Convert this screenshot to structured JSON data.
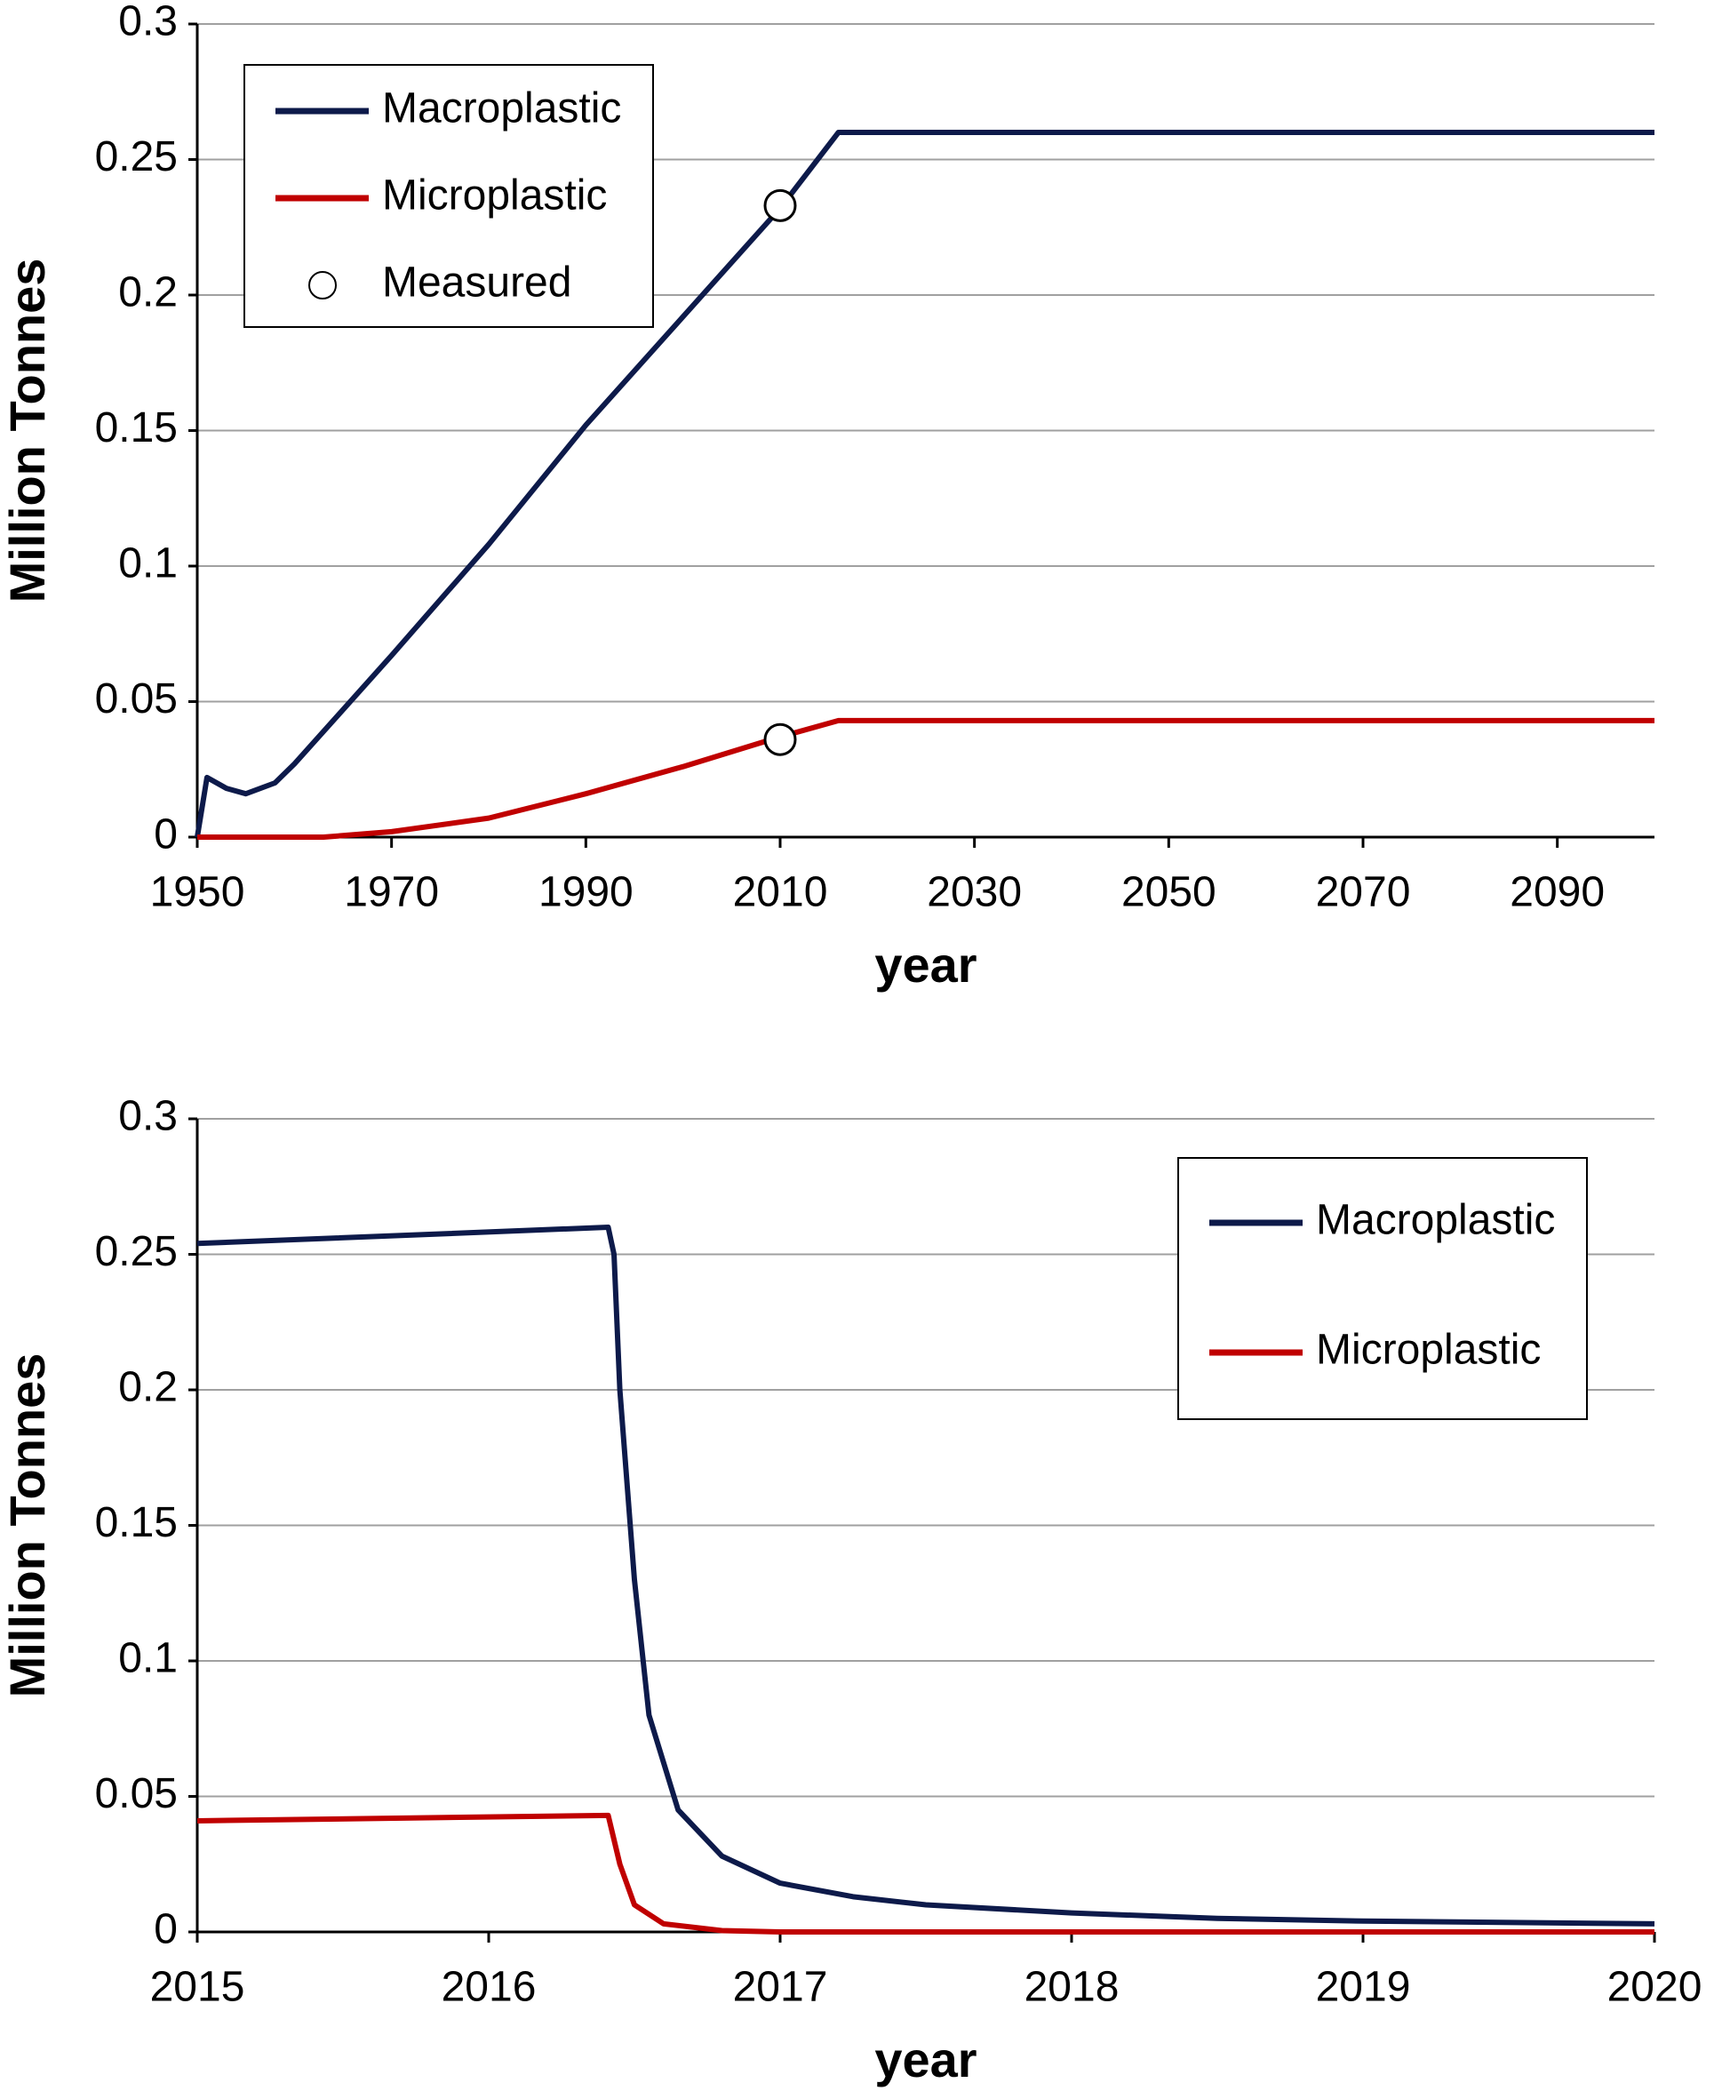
{
  "chart_data": [
    {
      "type": "line",
      "x_label": "year",
      "y_label": "Million Tonnes",
      "xlim": [
        1950,
        2100
      ],
      "xticks": [
        1950,
        1970,
        1990,
        2010,
        2030,
        2050,
        2070,
        2090
      ],
      "ylim": [
        0,
        0.3
      ],
      "yticks": [
        0,
        0.05,
        0.1,
        0.15,
        0.2,
        0.25,
        0.3
      ],
      "grid": true,
      "legend": "upper left",
      "series": [
        {
          "name": "Macroplastic",
          "color": "#0d1a4a",
          "x": [
            1950,
            1951,
            1953,
            1955,
            1958,
            1960,
            1970,
            1980,
            1990,
            2000,
            2010,
            2016,
            2100
          ],
          "values": [
            0,
            0.022,
            0.018,
            0.016,
            0.02,
            0.027,
            0.067,
            0.108,
            0.152,
            0.192,
            0.232,
            0.26,
            0.26
          ]
        },
        {
          "name": "Microplastic",
          "color": "#c00000",
          "x": [
            1950,
            1963,
            1970,
            1980,
            1990,
            2000,
            2010,
            2016,
            2100
          ],
          "values": [
            0,
            0,
            0.002,
            0.007,
            0.016,
            0.026,
            0.037,
            0.043,
            0.043
          ]
        },
        {
          "name": "Measured",
          "type": "scatter",
          "color": "#ffffff",
          "x": [
            2010,
            2010
          ],
          "values": [
            0.233,
            0.036
          ]
        }
      ]
    },
    {
      "type": "line",
      "x_label": "year",
      "y_label": "Million Tonnes",
      "xlim": [
        2015,
        2020
      ],
      "xticks": [
        2015,
        2016,
        2017,
        2018,
        2019,
        2020
      ],
      "ylim": [
        0,
        0.3
      ],
      "yticks": [
        0,
        0.05,
        0.1,
        0.15,
        0.2,
        0.25,
        0.3
      ],
      "grid": true,
      "legend": "upper right",
      "series": [
        {
          "name": "Macroplastic",
          "color": "#0d1a4a",
          "x": [
            2015,
            2016.41,
            2016.43,
            2016.45,
            2016.5,
            2016.55,
            2016.65,
            2016.8,
            2017,
            2017.25,
            2017.5,
            2018,
            2018.5,
            2019,
            2020
          ],
          "values": [
            0.254,
            0.26,
            0.25,
            0.2,
            0.13,
            0.08,
            0.045,
            0.028,
            0.018,
            0.013,
            0.01,
            0.007,
            0.005,
            0.004,
            0.003
          ]
        },
        {
          "name": "Microplastic",
          "color": "#c00000",
          "x": [
            2015,
            2016.41,
            2016.45,
            2016.5,
            2016.6,
            2016.8,
            2017,
            2020
          ],
          "values": [
            0.041,
            0.043,
            0.025,
            0.01,
            0.003,
            0.0005,
            0,
            0
          ]
        }
      ]
    }
  ]
}
